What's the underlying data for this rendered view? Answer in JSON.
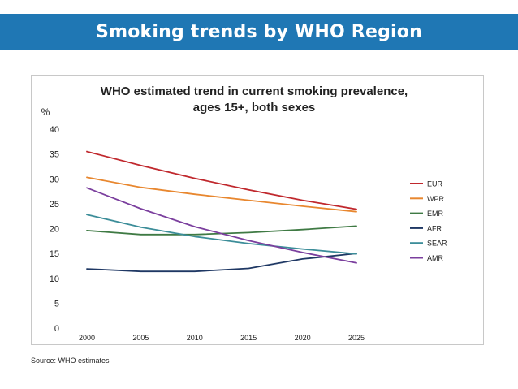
{
  "header": {
    "title": "Smoking trends by WHO Region"
  },
  "footer": {
    "source": "Source: WHO estimates"
  },
  "chart_data": {
    "type": "line",
    "title_lines": [
      "WHO estimated trend in current smoking prevalence,",
      "ages 15+, both sexes"
    ],
    "ylabel": "%",
    "xlabel": "",
    "x": [
      2000,
      2005,
      2010,
      2015,
      2020,
      2025
    ],
    "ylim": [
      0,
      40
    ],
    "yticks": [
      0,
      5,
      10,
      15,
      20,
      25,
      30,
      35,
      40
    ],
    "grid": false,
    "legend_position": "right",
    "series": [
      {
        "name": "EUR",
        "color": "#c0282d",
        "values": [
          35.5,
          32.7,
          30.1,
          27.8,
          25.7,
          23.9
        ]
      },
      {
        "name": "WPR",
        "color": "#e8872f",
        "values": [
          30.3,
          28.3,
          26.9,
          25.7,
          24.5,
          23.4
        ]
      },
      {
        "name": "EMR",
        "color": "#3f7a44",
        "values": [
          19.6,
          18.8,
          18.8,
          19.2,
          19.8,
          20.5
        ]
      },
      {
        "name": "AFR",
        "color": "#1f3864",
        "values": [
          11.9,
          11.4,
          11.4,
          12.0,
          13.9,
          15.0
        ]
      },
      {
        "name": "SEAR",
        "color": "#3c8d99",
        "values": [
          22.8,
          20.3,
          18.4,
          17.0,
          15.9,
          14.9
        ]
      },
      {
        "name": "AMR",
        "color": "#7b3f9e",
        "values": [
          28.2,
          24.0,
          20.4,
          17.6,
          15.2,
          13.1
        ]
      }
    ]
  }
}
